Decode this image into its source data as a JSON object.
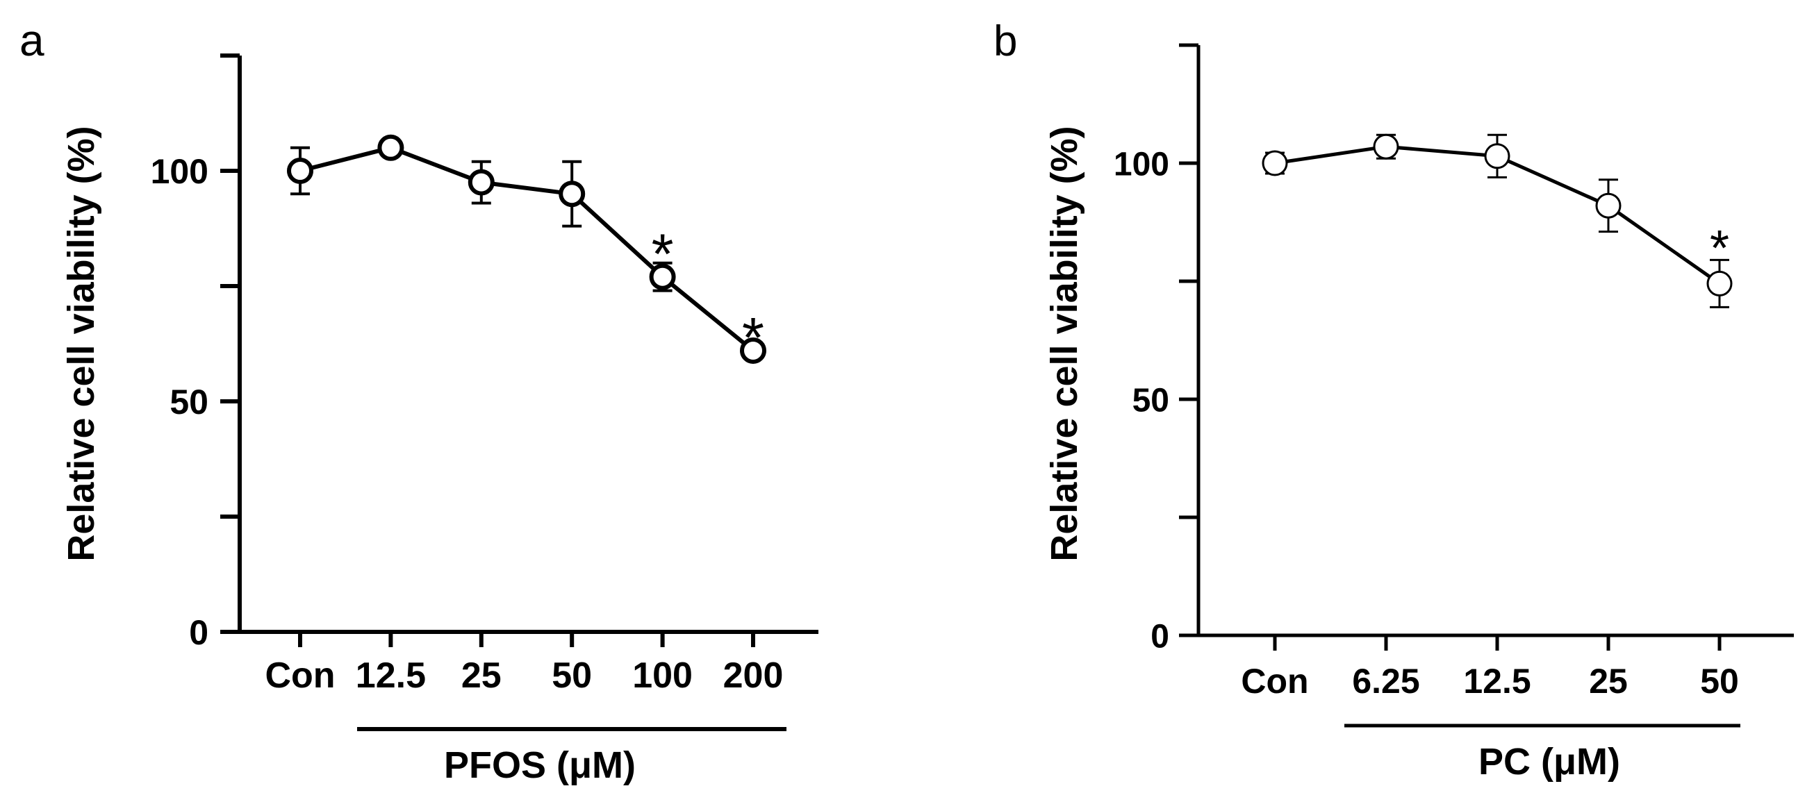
{
  "chart_data": [
    {
      "type": "line",
      "panel_label": "a",
      "title": "",
      "xlabel": "PFOS (μM)",
      "ylabel": "Relative cell viability (%)",
      "categories": [
        "Con",
        "12.5",
        "25",
        "50",
        "100",
        "200"
      ],
      "values": [
        100,
        105,
        97.5,
        95,
        77,
        61
      ],
      "errors": [
        5,
        1.5,
        4.5,
        7,
        3,
        0.8
      ],
      "significance": [
        "",
        "",
        "",
        "",
        "*",
        "*"
      ],
      "ylim": [
        0,
        125
      ],
      "yticks": [
        0,
        50,
        100
      ],
      "yminor_ticks": [
        25,
        75,
        125
      ],
      "xlabel_underline_from": "12.5",
      "grid": false
    },
    {
      "type": "line",
      "panel_label": "b",
      "title": "",
      "xlabel": "PC (μM)",
      "ylabel": "Relative cell viability (%)",
      "categories": [
        "Con",
        "6.25",
        "12.5",
        "25",
        "50"
      ],
      "values": [
        100,
        103.5,
        101.5,
        91,
        74.5
      ],
      "errors": [
        2.2,
        2.5,
        4.5,
        5.5,
        5
      ],
      "significance": [
        "",
        "",
        "",
        "",
        "*"
      ],
      "ylim": [
        0,
        125
      ],
      "yticks": [
        0,
        50,
        100
      ],
      "yminor_ticks": [
        25,
        75,
        125
      ],
      "xlabel_underline_from": "6.25",
      "grid": false
    }
  ]
}
